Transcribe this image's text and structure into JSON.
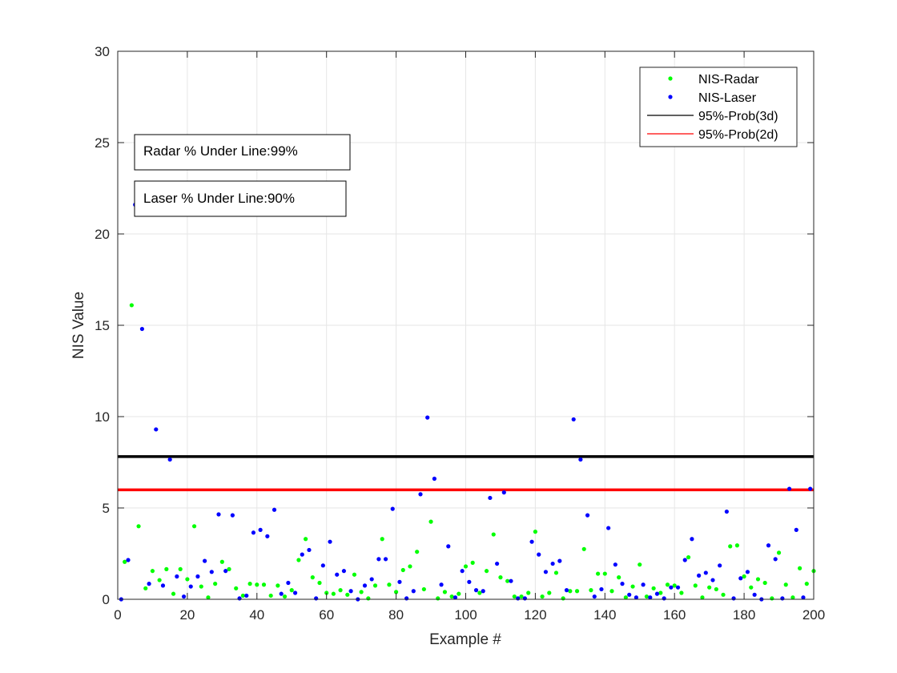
{
  "chart_data": {
    "type": "scatter",
    "xlabel": "Example #",
    "ylabel": "NIS Value",
    "xlim": [
      0,
      200
    ],
    "ylim": [
      0,
      30
    ],
    "xticks": [
      "0",
      "20",
      "40",
      "60",
      "80",
      "100",
      "120",
      "140",
      "160",
      "180",
      "200"
    ],
    "yticks": [
      "0",
      "5",
      "10",
      "15",
      "20",
      "25",
      "30"
    ],
    "grid": true,
    "legend_position": "top-right",
    "series": [
      {
        "name": "NIS-Radar",
        "kind": "points",
        "color": "#00ff00",
        "x": [
          2,
          4,
          6,
          8,
          10,
          12,
          14,
          16,
          18,
          20,
          22,
          24,
          26,
          28,
          30,
          32,
          34,
          36,
          38,
          40,
          42,
          44,
          46,
          48,
          50,
          52,
          54,
          56,
          58,
          60,
          62,
          64,
          66,
          68,
          70,
          72,
          74,
          76,
          78,
          80,
          82,
          84,
          86,
          88,
          90,
          92,
          94,
          96,
          98,
          100,
          102,
          104,
          106,
          108,
          110,
          112,
          114,
          116,
          118,
          120,
          122,
          124,
          126,
          128,
          130,
          132,
          134,
          136,
          138,
          140,
          142,
          144,
          146,
          148,
          150,
          152,
          154,
          156,
          158,
          160,
          162,
          164,
          166,
          168,
          170,
          172,
          174,
          176,
          178,
          180,
          182,
          184,
          186,
          188,
          190,
          192,
          194,
          196,
          198,
          200
        ],
        "y": [
          2.05,
          16.1,
          4.0,
          0.6,
          1.55,
          1.05,
          1.65,
          0.3,
          1.65,
          1.1,
          4.0,
          0.7,
          0.1,
          0.85,
          2.05,
          1.65,
          0.6,
          0.2,
          0.85,
          0.8,
          0.8,
          0.2,
          0.75,
          0.15,
          0.5,
          2.15,
          3.3,
          1.2,
          0.9,
          0.35,
          0.3,
          0.5,
          0.25,
          1.35,
          0.4,
          0.05,
          0.75,
          3.3,
          0.8,
          0.4,
          1.6,
          1.8,
          2.6,
          0.55,
          4.25,
          0.05,
          0.4,
          0.15,
          0.3,
          1.8,
          2.0,
          0.35,
          1.55,
          3.55,
          1.2,
          1.0,
          0.15,
          0.15,
          0.35,
          3.7,
          0.15,
          0.35,
          1.45,
          0.05,
          0.45,
          0.45,
          2.75,
          0.5,
          1.4,
          1.4,
          0.45,
          1.2,
          0.1,
          0.7,
          1.9,
          0.15,
          0.6,
          0.35,
          0.8,
          0.75,
          0.35,
          2.3,
          0.75,
          0.1,
          0.65,
          0.55,
          0.25,
          2.9,
          2.95,
          1.25,
          0.65,
          1.1,
          0.9,
          0.05,
          2.55,
          0.8,
          0.1,
          1.7,
          0.85,
          1.55
        ]
      },
      {
        "name": "NIS-Laser",
        "kind": "points",
        "color": "#0000ff",
        "x": [
          1,
          3,
          5,
          7,
          9,
          11,
          13,
          15,
          17,
          19,
          21,
          23,
          25,
          27,
          29,
          31,
          33,
          35,
          37,
          39,
          41,
          43,
          45,
          47,
          49,
          51,
          53,
          55,
          57,
          59,
          61,
          63,
          65,
          67,
          69,
          71,
          73,
          75,
          77,
          79,
          81,
          83,
          85,
          87,
          89,
          91,
          93,
          95,
          97,
          99,
          101,
          103,
          105,
          107,
          109,
          111,
          113,
          115,
          117,
          119,
          121,
          123,
          125,
          127,
          129,
          131,
          133,
          135,
          137,
          139,
          141,
          143,
          145,
          147,
          149,
          151,
          153,
          155,
          157,
          159,
          161,
          163,
          165,
          167,
          169,
          171,
          173,
          175,
          177,
          179,
          181,
          183,
          185,
          187,
          189,
          191,
          193,
          195,
          197,
          199
        ],
        "y": [
          0.0,
          2.15,
          21.6,
          14.8,
          0.85,
          9.3,
          0.75,
          7.65,
          1.25,
          0.15,
          0.7,
          1.25,
          2.1,
          1.5,
          4.65,
          1.55,
          4.6,
          0.05,
          0.2,
          3.65,
          3.8,
          3.45,
          4.9,
          0.3,
          0.9,
          0.35,
          2.45,
          2.7,
          0.05,
          1.85,
          3.15,
          1.35,
          1.55,
          0.45,
          0.0,
          0.75,
          1.1,
          2.2,
          2.2,
          4.95,
          0.95,
          0.05,
          0.45,
          5.75,
          9.95,
          6.6,
          0.8,
          2.9,
          0.1,
          1.55,
          0.95,
          0.5,
          0.45,
          5.55,
          1.95,
          5.85,
          1.0,
          0.05,
          0.05,
          3.15,
          2.45,
          1.5,
          1.95,
          2.1,
          0.5,
          9.85,
          7.65,
          4.6,
          0.15,
          0.55,
          3.9,
          1.9,
          0.85,
          0.25,
          0.1,
          0.8,
          0.1,
          0.3,
          0.05,
          0.65,
          0.65,
          2.15,
          3.3,
          1.3,
          1.45,
          1.05,
          1.85,
          4.8,
          0.05,
          1.15,
          1.5,
          0.25,
          0.0,
          2.95,
          2.2,
          0.05,
          6.05,
          3.8,
          0.1,
          6.05
        ]
      },
      {
        "name": "95%-Prob(3d)",
        "kind": "hline",
        "color": "#000000",
        "y": 7.815
      },
      {
        "name": "95%-Prob(2d)",
        "kind": "hline",
        "color": "#ff0000",
        "y": 5.991
      }
    ],
    "annotations": [
      {
        "text": "Radar % Under Line:99%"
      },
      {
        "text": "Laser % Under Line:90%"
      }
    ]
  }
}
